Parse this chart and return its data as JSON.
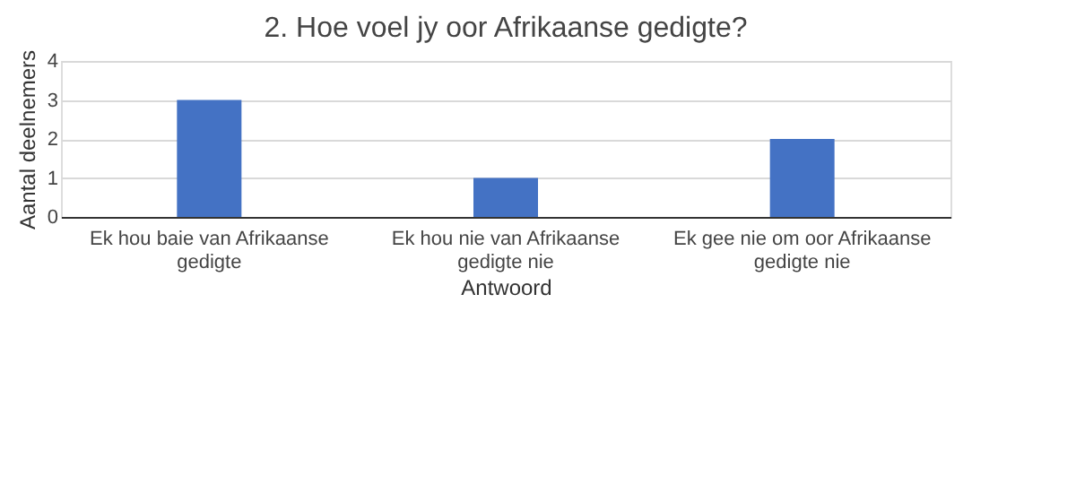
{
  "chart_data": {
    "type": "bar",
    "title": "2. Hoe voel jy oor Afrikaanse gedigte?",
    "xlabel": "Antwoord",
    "ylabel": "Aantal deelnemers",
    "categories": [
      "Ek hou baie van Afrikaanse gedigte",
      "Ek hou nie van Afrikaanse gedigte nie",
      "Ek gee nie om oor Afrikaanse gedigte nie"
    ],
    "values": [
      3,
      1,
      2
    ],
    "color": "#4472c4",
    "ylim": [
      0,
      4
    ],
    "yticks": [
      0,
      1,
      2,
      3,
      4
    ],
    "grid": "y"
  }
}
